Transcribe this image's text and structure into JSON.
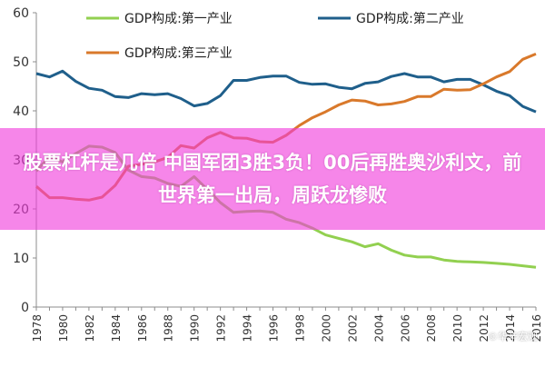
{
  "chart_data": {
    "type": "line",
    "title": "",
    "xlabel": "",
    "ylabel": "",
    "ylim": [
      0,
      60
    ],
    "yticks": [
      0,
      10,
      20,
      30,
      40,
      50,
      60
    ],
    "xlim": [
      1978,
      2016
    ],
    "xticks": [
      1978,
      1980,
      1982,
      1984,
      1986,
      1988,
      1990,
      1992,
      1994,
      1996,
      1998,
      2000,
      2002,
      2004,
      2006,
      2008,
      2010,
      2012,
      2014,
      2016
    ],
    "grid": false,
    "legend_position": "top",
    "x": [
      1978,
      1979,
      1980,
      1981,
      1982,
      1983,
      1984,
      1985,
      1986,
      1987,
      1988,
      1989,
      1990,
      1991,
      1992,
      1993,
      1994,
      1995,
      1996,
      1997,
      1998,
      1999,
      2000,
      2001,
      2002,
      2003,
      2004,
      2005,
      2006,
      2007,
      2008,
      2009,
      2010,
      2011,
      2012,
      2013,
      2014,
      2015,
      2016
    ],
    "series": [
      {
        "name": "GDP构成:第一产业",
        "color": "#92d050",
        "values": [
          27.7,
          30.7,
          29.6,
          31.3,
          32.8,
          32.6,
          31.5,
          27.9,
          26.6,
          26.3,
          25.2,
          24.6,
          26.6,
          24.0,
          21.3,
          19.3,
          19.5,
          19.6,
          19.3,
          17.9,
          17.2,
          16.1,
          14.7,
          14.0,
          13.3,
          12.3,
          12.9,
          11.6,
          10.6,
          10.2,
          10.2,
          9.6,
          9.3,
          9.2,
          9.1,
          8.9,
          8.7,
          8.4,
          8.1
        ]
      },
      {
        "name": "GDP构成:第二产业",
        "color": "#1f5f8b",
        "values": [
          47.6,
          46.9,
          48.1,
          46.0,
          44.6,
          44.2,
          42.9,
          42.7,
          43.5,
          43.3,
          43.5,
          42.5,
          41.0,
          41.5,
          43.1,
          46.2,
          46.2,
          46.8,
          47.1,
          47.1,
          45.8,
          45.4,
          45.5,
          44.8,
          44.5,
          45.6,
          45.9,
          47.0,
          47.6,
          46.9,
          46.9,
          45.9,
          46.4,
          46.4,
          45.3,
          44.0,
          43.1,
          40.9,
          39.8
        ]
      },
      {
        "name": "GDP构成:第三产业",
        "color": "#d9792b",
        "values": [
          24.6,
          22.3,
          22.3,
          22.0,
          21.8,
          22.4,
          24.8,
          28.7,
          29.1,
          29.6,
          30.5,
          32.9,
          32.4,
          34.5,
          35.6,
          34.5,
          34.4,
          33.7,
          33.6,
          35.0,
          37.0,
          38.6,
          39.8,
          41.2,
          42.2,
          42.0,
          41.2,
          41.4,
          41.9,
          42.9,
          42.9,
          44.4,
          44.2,
          44.3,
          45.5,
          46.9,
          48.0,
          50.5,
          51.6
        ]
      }
    ]
  },
  "overlay": {
    "headline": "股票杠杆是几倍 中国军团3胜3负！00后再胜奥沙利文，前世界第一出局，周跃龙惨败"
  },
  "watermark": {
    "text": "©华辛宏观"
  }
}
